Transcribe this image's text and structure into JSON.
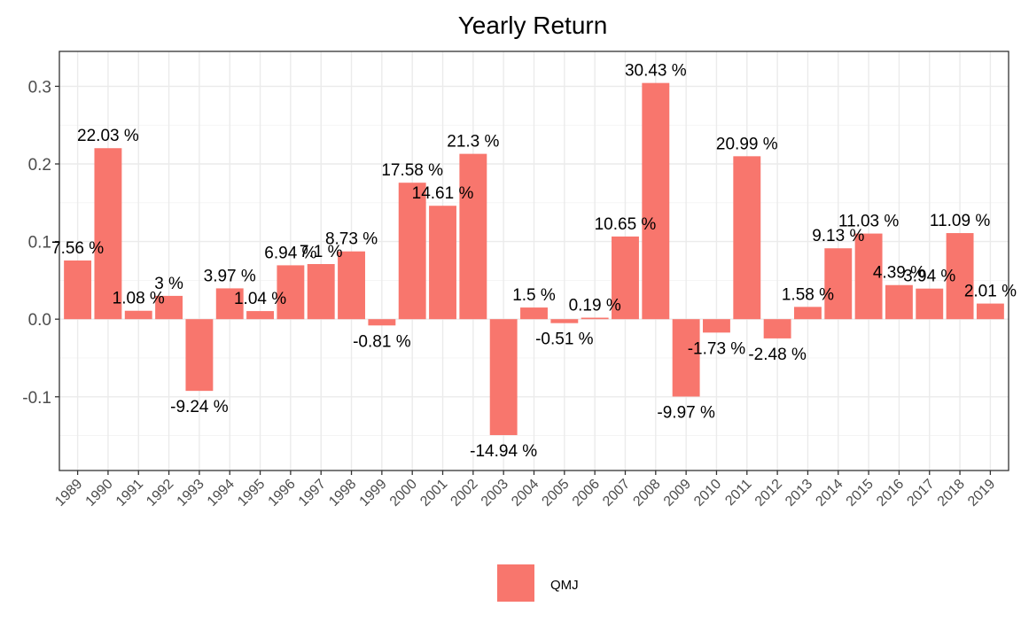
{
  "chart_data": {
    "type": "bar",
    "title": "Yearly Return",
    "xlabel": "",
    "ylabel": "",
    "categories": [
      "1989",
      "1990",
      "1991",
      "1992",
      "1993",
      "1994",
      "1995",
      "1996",
      "1997",
      "1998",
      "1999",
      "2000",
      "2001",
      "2002",
      "2003",
      "2004",
      "2005",
      "2006",
      "2007",
      "2008",
      "2009",
      "2010",
      "2011",
      "2012",
      "2013",
      "2014",
      "2015",
      "2016",
      "2017",
      "2018",
      "2019"
    ],
    "series": [
      {
        "name": "QMJ",
        "color": "#F8766D",
        "values": [
          0.0756,
          0.2203,
          0.0108,
          0.03,
          -0.0924,
          0.0397,
          0.0104,
          0.0694,
          0.071,
          0.0873,
          -0.0081,
          0.1758,
          0.1461,
          0.213,
          -0.1494,
          0.015,
          -0.0051,
          0.0019,
          0.1065,
          0.3043,
          -0.0997,
          -0.0173,
          0.2099,
          -0.0248,
          0.0158,
          0.0913,
          0.1103,
          0.0439,
          0.0394,
          0.1109,
          0.0201
        ],
        "labels": [
          "7.56 %",
          "22.03 %",
          "1.08 %",
          "3 %",
          "-9.24 %",
          "3.97 %",
          "1.04 %",
          "6.94 %",
          "7.1 %",
          "8.73 %",
          "-0.81 %",
          "17.58 %",
          "14.61 %",
          "21.3 %",
          "-14.94 %",
          "1.5 %",
          "-0.51 %",
          "0.19 %",
          "10.65 %",
          "30.43 %",
          "-9.97 %",
          "-1.73 %",
          "20.99 %",
          "-2.48 %",
          "1.58 %",
          "9.13 %",
          "11.03 %",
          "4.39 %",
          "3.94 %",
          "11.09 %",
          "2.01 %"
        ]
      }
    ],
    "ylim": [
      -0.195,
      0.345
    ],
    "yticks": [
      -0.1,
      0.0,
      0.1,
      0.2,
      0.3
    ],
    "ytick_labels": [
      "-0.1",
      "0.0",
      "0.1",
      "0.2",
      "0.3"
    ],
    "grid": true,
    "legend_position": "bottom"
  }
}
